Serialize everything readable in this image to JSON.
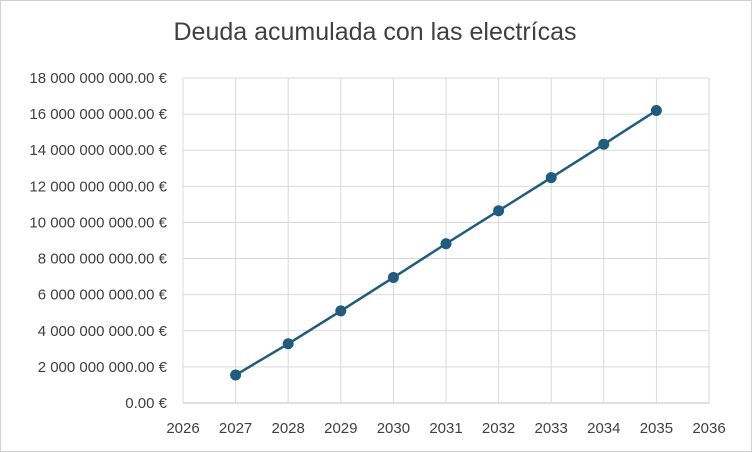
{
  "chart_data": {
    "type": "line",
    "title": "Deuda acumulada con las electrícas",
    "xlabel": "",
    "ylabel": "",
    "x": [
      2027,
      2028,
      2029,
      2030,
      2031,
      2032,
      2033,
      2034,
      2035
    ],
    "series": [
      {
        "values": [
          1550000000,
          3280000000,
          5100000000,
          6950000000,
          8820000000,
          10650000000,
          12480000000,
          14330000000,
          16200000000
        ],
        "color": "#1f5c7f"
      }
    ],
    "xlim": [
      2026,
      2036
    ],
    "ylim": [
      0,
      18000000000
    ],
    "x_ticks": [
      "2026",
      "2027",
      "2028",
      "2029",
      "2030",
      "2031",
      "2032",
      "2033",
      "2034",
      "2035",
      "2036"
    ],
    "y_ticks": [
      "0.00 €",
      "2 000 000 000.00 €",
      "4 000 000 000.00 €",
      "6 000 000 000.00 €",
      "8 000 000 000.00 €",
      "10 000 000 000.00 €",
      "12 000 000 000.00 €",
      "14 000 000 000.00 €",
      "16 000 000 000.00 €",
      "18 000 000 000.00 €"
    ],
    "grid": true,
    "legend": "none"
  }
}
